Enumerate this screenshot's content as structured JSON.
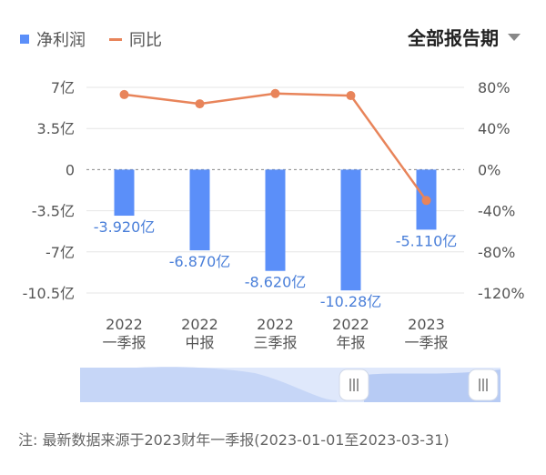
{
  "legend": {
    "bar_label": "净利润",
    "line_label": "同比"
  },
  "period_selector": {
    "label": "全部报告期"
  },
  "note": "注: 最新数据来源于2023财年一季报(2023-01-01至2023-03-31)",
  "colors": {
    "bar": "#5b8ff9",
    "line": "#e8845a",
    "bar_label": "#4a7fd9",
    "axis_text": "#555555"
  },
  "chart_data": {
    "type": "bar",
    "categories": [
      [
        "2022",
        "一季报"
      ],
      [
        "2022",
        "中报"
      ],
      [
        "2022",
        "三季报"
      ],
      [
        "2022",
        "年报"
      ],
      [
        "2023",
        "一季报"
      ]
    ],
    "series": [
      {
        "name": "净利润",
        "type": "bar",
        "axis": "left",
        "values": [
          -3.92,
          -6.87,
          -8.62,
          -10.28,
          -5.11
        ],
        "labels": [
          "-3.920亿",
          "-6.870亿",
          "-8.620亿",
          "-10.28亿",
          "-5.110亿"
        ]
      },
      {
        "name": "同比",
        "type": "line",
        "axis": "right",
        "values": [
          73,
          64,
          74,
          72,
          -30
        ]
      }
    ],
    "y_left": {
      "ticks": [
        7,
        3.5,
        0,
        -3.5,
        -7,
        -10.5
      ],
      "tick_labels": [
        "7亿",
        "3.5亿",
        "0",
        "-3.5亿",
        "-7亿",
        "-10.5亿"
      ],
      "range": [
        -10.5,
        7
      ]
    },
    "y_right": {
      "ticks": [
        80,
        40,
        0,
        -40,
        -80,
        -120
      ],
      "tick_labels": [
        "80%",
        "40%",
        "0%",
        "-40%",
        "-80%",
        "-120%"
      ],
      "range": [
        -120,
        80
      ]
    },
    "grid": true,
    "legend_position": "top-left"
  }
}
